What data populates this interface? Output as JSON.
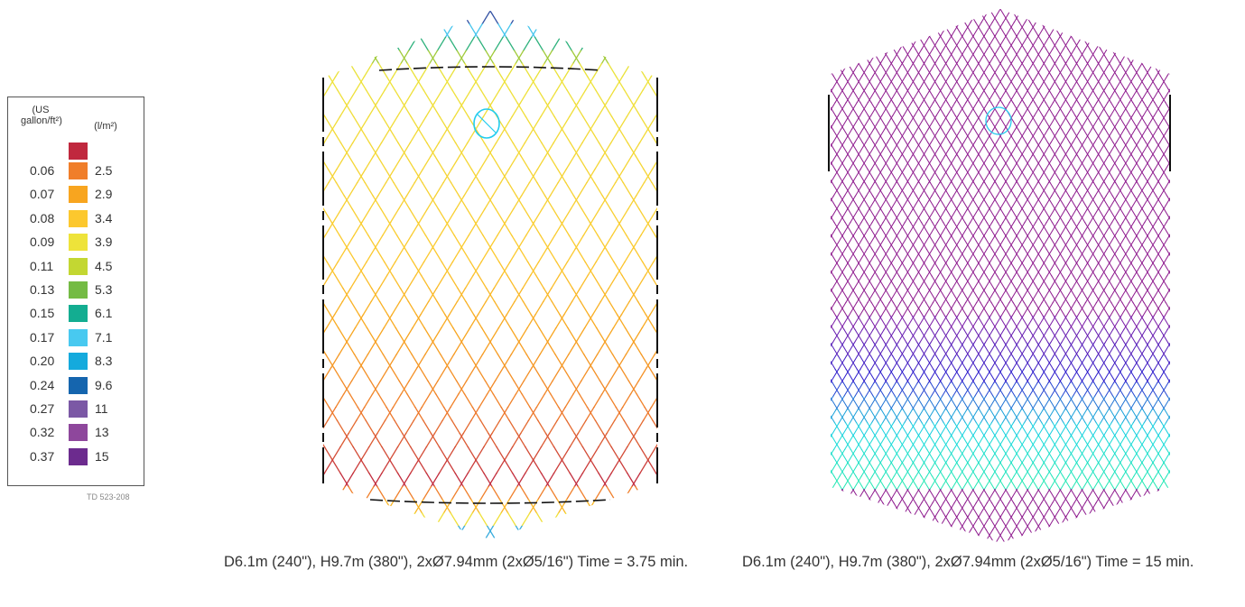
{
  "legend": {
    "header_us": "(US gallon/ft²)",
    "header_si": "(l/m²)",
    "top_swatch_color": "#c0283e",
    "rows": [
      {
        "us": "0.06",
        "si": "2.5",
        "color": "#f07e2a"
      },
      {
        "us": "0.07",
        "si": "2.9",
        "color": "#f8a51f"
      },
      {
        "us": "0.08",
        "si": "3.4",
        "color": "#fcc82e"
      },
      {
        "us": "0.09",
        "si": "3.9",
        "color": "#eee33a"
      },
      {
        "us": "0.11",
        "si": "4.5",
        "color": "#c3d732"
      },
      {
        "us": "0.13",
        "si": "5.3",
        "color": "#74bb44"
      },
      {
        "us": "0.15",
        "si": "6.1",
        "color": "#13ad91"
      },
      {
        "us": "0.17",
        "si": "7.1",
        "color": "#48c9f0"
      },
      {
        "us": "0.20",
        "si": "8.3",
        "color": "#14aadd"
      },
      {
        "us": "0.24",
        "si": "9.6",
        "color": "#1565ae"
      },
      {
        "us": "0.27",
        "si": "11",
        "color": "#7b58a5"
      },
      {
        "us": "0.32",
        "si": "13",
        "color": "#8e479c"
      },
      {
        "us": "0.37",
        "si": "15",
        "color": "#6c2b8e"
      }
    ],
    "code": "TD 523-208"
  },
  "tank1": {
    "caption": "D6.1m (240\"), H9.7m (380\"), 2xØ7.94mm (2xØ5/16\") Time = 3.75 min.",
    "top_colors": [
      "#6c2b8e",
      "#1565ae",
      "#48c9f0",
      "#13ad91",
      "#74bb44",
      "#c3d732",
      "#eee33a"
    ],
    "body_colors": [
      "#eee33a",
      "#fcc82e",
      "#f8a51f",
      "#f07e2a",
      "#c0283e"
    ],
    "bottom_colors": [
      "#c0283e",
      "#f07e2a",
      "#f8a51f",
      "#fcc82e",
      "#eee33a",
      "#48c9f0",
      "#1565ae"
    ]
  },
  "tank2": {
    "caption": "D6.1m (240\"), H9.7m (380\"), 2xØ7.94mm (2xØ5/16\") Time = 15 min.",
    "cap_color": "#8e1a8e",
    "body_colors": [
      "#8e1a8e",
      "#8e1a8e",
      "#7a1aa6",
      "#2a1acc",
      "#14d8e0",
      "#22e8b0"
    ]
  },
  "nozzle_color": "#22ccee",
  "outline_color": "#111111"
}
